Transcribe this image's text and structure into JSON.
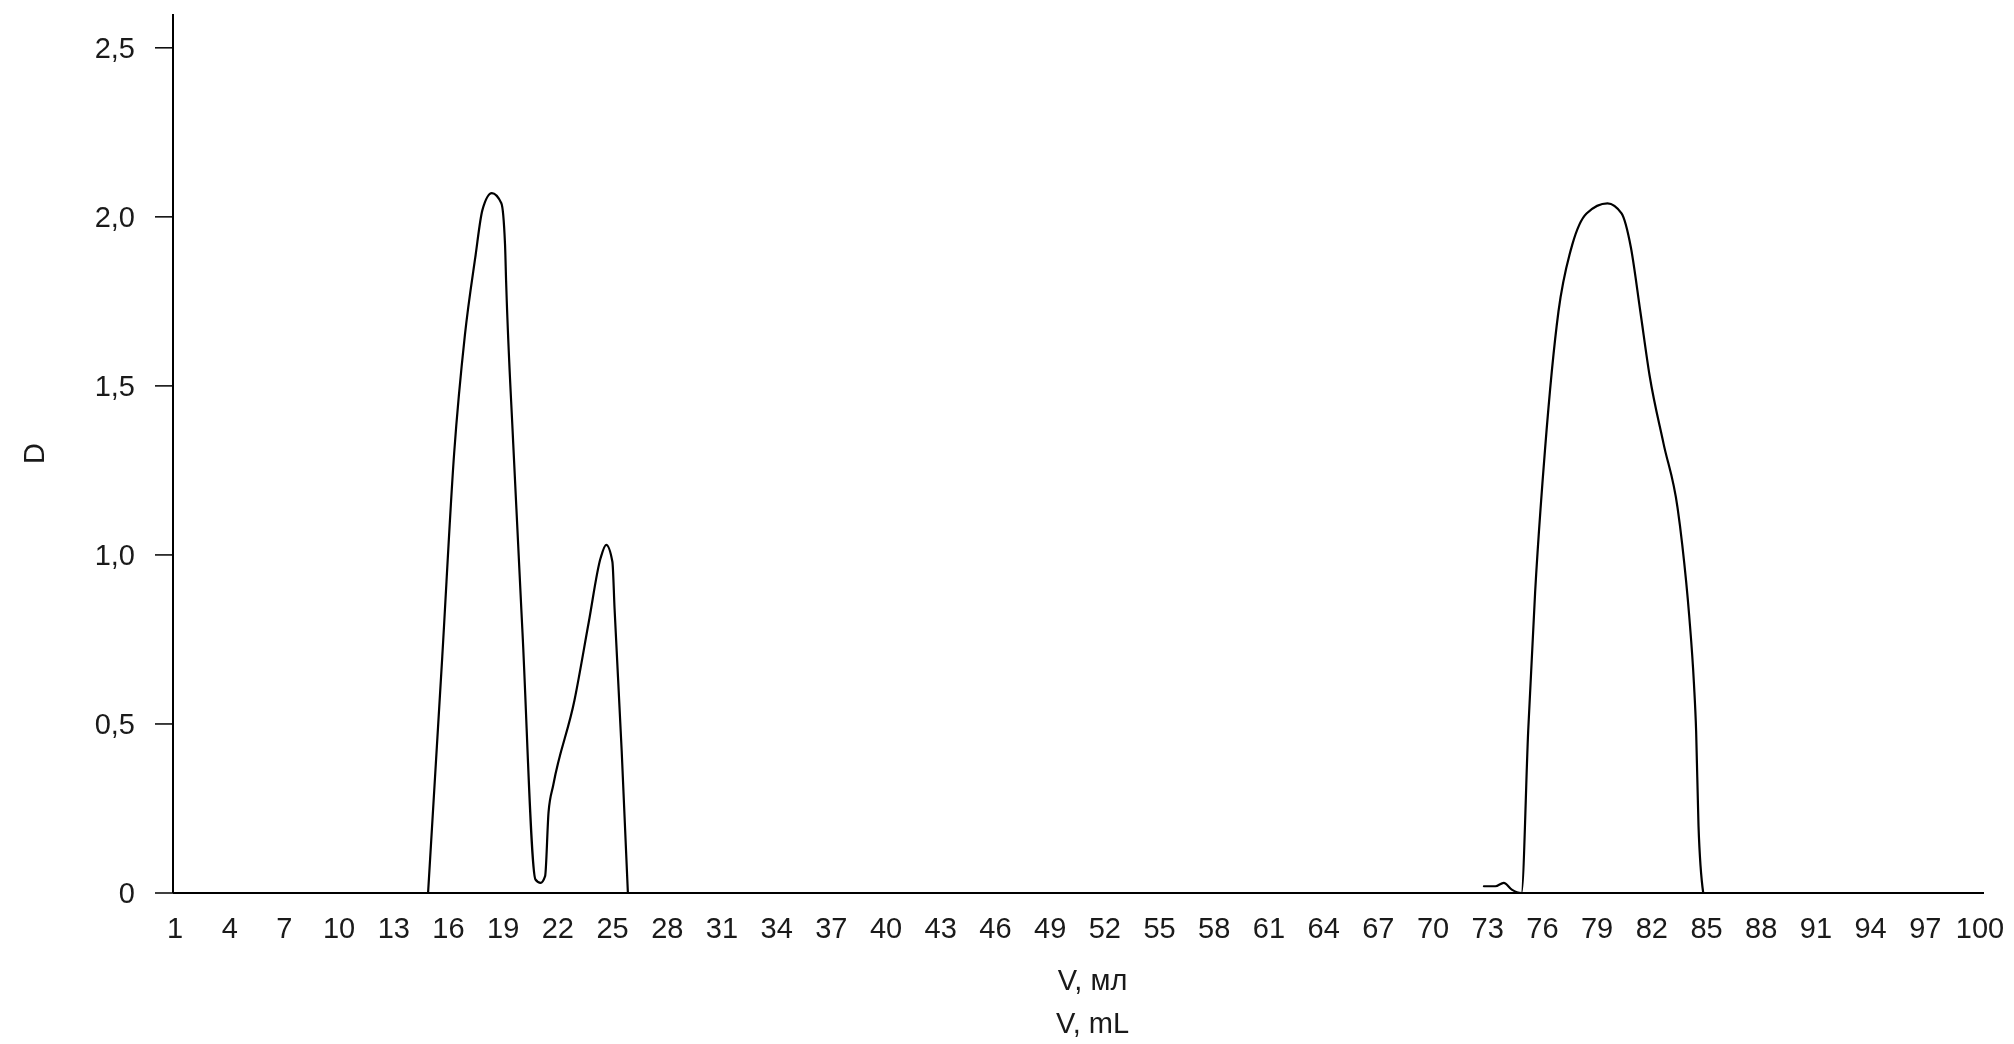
{
  "chart_data": {
    "type": "line",
    "xlabel": "V, мл\nV, mL",
    "ylabel": "D",
    "color": "#000000",
    "x": [
      14.88,
      15.66,
      16.31,
      16.9,
      17.47,
      17.86,
      18.38,
      18.9,
      19.1,
      19.16,
      19.55,
      20.06,
      20.77,
      21.05,
      21.3,
      21.49,
      21.75,
      22.91,
      23.69,
      24.34,
      24.65,
      24.99,
      25.11,
      25.5,
      25.84,
      50,
      72.79,
      73.42,
      73.88,
      74.32,
      74.85,
      75.22,
      75.6,
      76.14,
      76.88,
      77.65,
      78.42,
      79.57,
      80.34,
      80.85,
      81.37,
      81.88,
      82.64,
      83.41,
      83.67,
      84.05,
      84.31,
      84.43,
      84.56,
      84.82
    ],
    "values": [
      0,
      0.7,
      1.3,
      1.65,
      1.88,
      2.02,
      2.07,
      2.04,
      1.92,
      1.81,
      1.33,
      0.77,
      0.04,
      0.03,
      0.05,
      0.24,
      0.32,
      0.57,
      0.8,
      0.99,
      1.03,
      0.98,
      0.84,
      0.42,
      0,
      null,
      0.02,
      0.02,
      0.03,
      0.01,
      0,
      0.48,
      0.89,
      1.31,
      1.72,
      1.92,
      2.01,
      2.04,
      2.01,
      1.91,
      1.72,
      1.53,
      1.33,
      1.14,
      1.03,
      0.82,
      0.62,
      0.48,
      0.2,
      0
    ],
    "xlim": [
      1,
      100
    ],
    "ylim": [
      0,
      2.6
    ],
    "xticks": [
      1,
      4,
      7,
      10,
      13,
      16,
      19,
      22,
      25,
      28,
      31,
      34,
      37,
      40,
      43,
      46,
      49,
      52,
      55,
      58,
      61,
      64,
      67,
      70,
      73,
      76,
      79,
      82,
      85,
      88,
      91,
      94,
      97,
      100
    ],
    "yticks": [
      0,
      {
        "value": 0.5,
        "label": "0,5"
      },
      {
        "value": 1,
        "label": "1,0"
      },
      {
        "value": 1.5,
        "label": "1,5"
      },
      {
        "value": 2,
        "label": "2,0"
      },
      {
        "value": 2.5,
        "label": "2,5"
      }
    ]
  }
}
